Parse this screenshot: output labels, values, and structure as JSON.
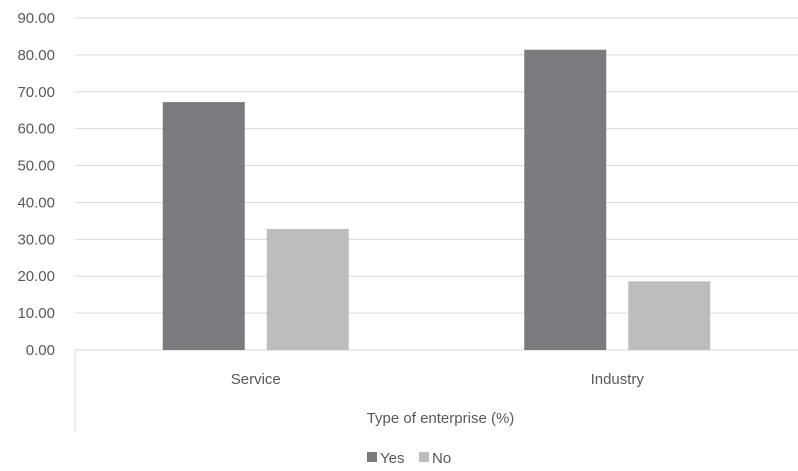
{
  "chart_data": {
    "type": "bar",
    "categories": [
      "Service",
      "Industry"
    ],
    "series": [
      {
        "name": "Yes",
        "values": [
          67.2,
          81.4
        ],
        "color": "#7a7b7e"
      },
      {
        "name": "No",
        "values": [
          32.8,
          18.6
        ],
        "color": "#bcbdbf"
      }
    ],
    "xlabel": "Type of enterprise (%)",
    "ylabel": "",
    "ylim": [
      0,
      90
    ],
    "yticks": [
      "0.00",
      "10.00",
      "20.00",
      "30.00",
      "40.00",
      "50.00",
      "60.00",
      "70.00",
      "80.00",
      "90.00"
    ],
    "grid": true,
    "legend_position": "bottom"
  }
}
